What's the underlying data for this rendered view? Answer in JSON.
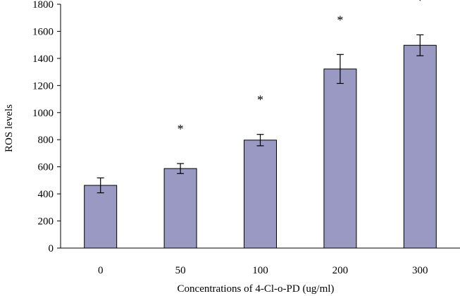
{
  "chart_data": {
    "type": "bar",
    "categories": [
      "0",
      "50",
      "100",
      "200",
      "300"
    ],
    "values": [
      463,
      587,
      797,
      1322,
      1497
    ],
    "errors": [
      55,
      37,
      42,
      107,
      77
    ],
    "significance": [
      "",
      "*",
      "*",
      "*",
      "*"
    ],
    "xlabel": "Concentrations of 4-Cl-o-PD (ug/ml)",
    "ylabel": "ROS levels",
    "ylim": [
      0,
      1800
    ],
    "yticks": [
      0,
      200,
      400,
      600,
      800,
      1000,
      1200,
      1400,
      1600,
      1800
    ],
    "grid": false,
    "legend": "none",
    "bar_color": "#9999c4",
    "bar_edge_color": "#000000"
  }
}
